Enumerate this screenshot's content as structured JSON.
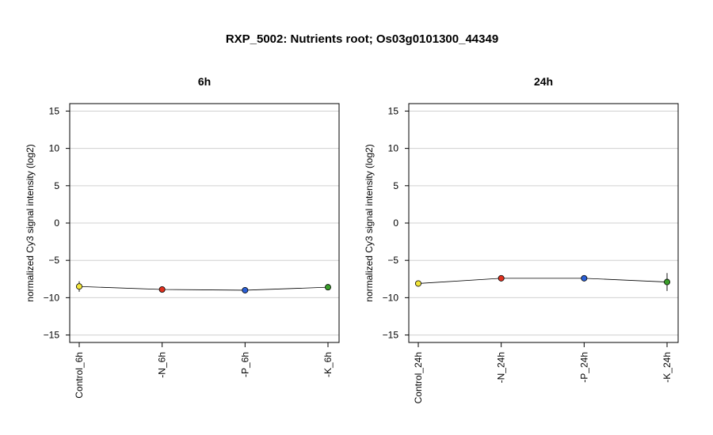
{
  "title": "RXP_5002: Nutrients root; Os03g0101300_44349",
  "chart_data": [
    {
      "type": "line",
      "title": "6h",
      "xlabel": "",
      "ylabel": "normalized Cy3 signal intensity (log2)",
      "ylim": [
        -16,
        16
      ],
      "yticks": [
        -15,
        -10,
        -5,
        0,
        5,
        10,
        15
      ],
      "grid": true,
      "categories": [
        "Control_6h",
        "-N_6h",
        "-P_6h",
        "-K_6h"
      ],
      "values": [
        -8.5,
        -8.9,
        -9.0,
        -8.6
      ],
      "error": [
        0.7,
        0.2,
        0.4,
        0.3
      ],
      "point_colors": [
        "#f2e53a",
        "#e0301e",
        "#2a5fd6",
        "#3a9e2a"
      ]
    },
    {
      "type": "line",
      "title": "24h",
      "xlabel": "",
      "ylabel": "normalized Cy3 signal intensity (log2)",
      "ylim": [
        -16,
        16
      ],
      "yticks": [
        -15,
        -10,
        -5,
        0,
        5,
        10,
        15
      ],
      "grid": true,
      "categories": [
        "Control_24h",
        "-N_24h",
        "-P_24h",
        "-K_24h"
      ],
      "values": [
        -8.1,
        -7.4,
        -7.4,
        -7.9
      ],
      "error": [
        0.3,
        0.2,
        0.2,
        1.2
      ],
      "point_colors": [
        "#f2e53a",
        "#e0301e",
        "#2a5fd6",
        "#3a9e2a"
      ]
    }
  ]
}
